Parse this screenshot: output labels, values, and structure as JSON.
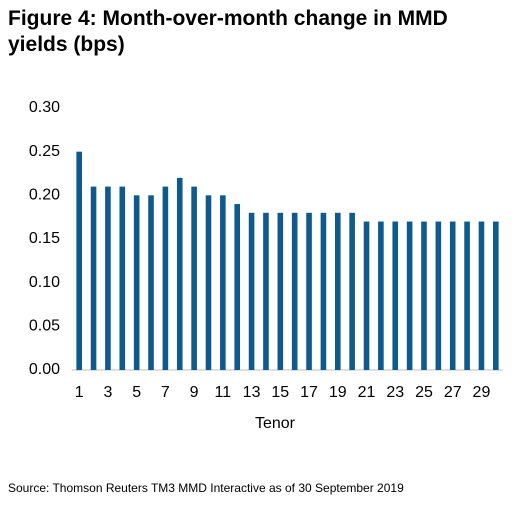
{
  "chart_data": {
    "type": "bar",
    "title": "Figure 4: Month-over-month change in MMD yields (bps)",
    "x_label": "Tenor",
    "source": "Source: Thomson Reuters TM3 MMD Interactive as of 30 September 2019",
    "categories": [
      "1",
      null,
      "3",
      null,
      "5",
      null,
      "7",
      null,
      "9",
      null,
      "11",
      null,
      "13",
      null,
      "15",
      null,
      "17",
      null,
      "19",
      null,
      "21",
      null,
      "23",
      null,
      "25",
      null,
      "27",
      null,
      "29",
      null
    ],
    "values": [
      0.25,
      0.21,
      0.21,
      0.21,
      0.2,
      0.2,
      0.21,
      0.22,
      0.21,
      0.2,
      0.2,
      0.19,
      0.18,
      0.18,
      0.18,
      0.18,
      0.18,
      0.18,
      0.18,
      0.18,
      0.17,
      0.17,
      0.17,
      0.17,
      0.17,
      0.17,
      0.17,
      0.17,
      0.17,
      0.17
    ],
    "color": "#0f5a8c",
    "ylim": [
      0,
      0.3
    ],
    "yticks": [
      {
        "value": 0,
        "label": "0.00"
      },
      {
        "value": 0.05,
        "label": "0.05"
      },
      {
        "value": 0.1,
        "label": "0.10"
      },
      {
        "value": 0.15,
        "label": "0.15"
      },
      {
        "value": 0.2,
        "label": "0.20"
      },
      {
        "value": 0.25,
        "label": "0.25"
      },
      {
        "value": 0.3,
        "label": "0.30"
      }
    ],
    "grid": false
  }
}
